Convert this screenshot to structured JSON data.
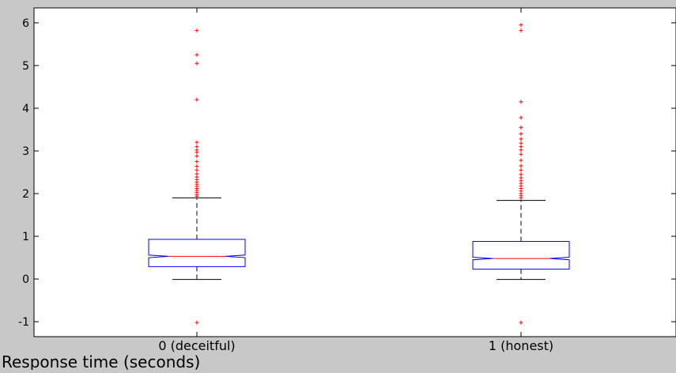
{
  "chart_data": {
    "type": "box",
    "title": "",
    "xlabel": "Response time (seconds)",
    "ylabel": "",
    "ylim": [
      -1.35,
      6.35
    ],
    "yticks": [
      -1,
      0,
      1,
      2,
      3,
      4,
      5,
      6
    ],
    "notched": true,
    "grid": false,
    "categories": [
      "0 (deceitful)",
      "1 (honest)"
    ],
    "boxes": [
      {
        "category": "0 (deceitful)",
        "q1": 0.29,
        "median": 0.53,
        "q3": 0.93,
        "notch_low": 0.5,
        "notch_high": 0.56,
        "whisker_low": -0.01,
        "whisker_high": 1.9,
        "outliers": [
          -1.02,
          1.94,
          1.98,
          2.03,
          2.08,
          2.12,
          2.17,
          2.22,
          2.27,
          2.33,
          2.39,
          2.46,
          2.55,
          2.64,
          2.75,
          2.88,
          2.97,
          3.02,
          3.1,
          3.2,
          4.2,
          5.05,
          5.25,
          5.82
        ]
      },
      {
        "category": "1 (honest)",
        "q1": 0.23,
        "median": 0.48,
        "q3": 0.88,
        "notch_low": 0.45,
        "notch_high": 0.51,
        "whisker_low": -0.01,
        "whisker_high": 1.84,
        "outliers": [
          -1.02,
          1.9,
          1.95,
          2.0,
          2.06,
          2.12,
          2.18,
          2.24,
          2.3,
          2.37,
          2.45,
          2.55,
          2.65,
          2.78,
          2.92,
          3.02,
          3.1,
          3.18,
          3.28,
          3.4,
          3.55,
          3.78,
          4.15,
          5.82,
          5.95
        ]
      }
    ],
    "colors": {
      "box": "#0000ff",
      "median": "#ff0000",
      "whisker": "#000000",
      "outlier": "#ff0000",
      "plot_background": "#ffffff",
      "figure_background": "#c8c8c8"
    }
  }
}
